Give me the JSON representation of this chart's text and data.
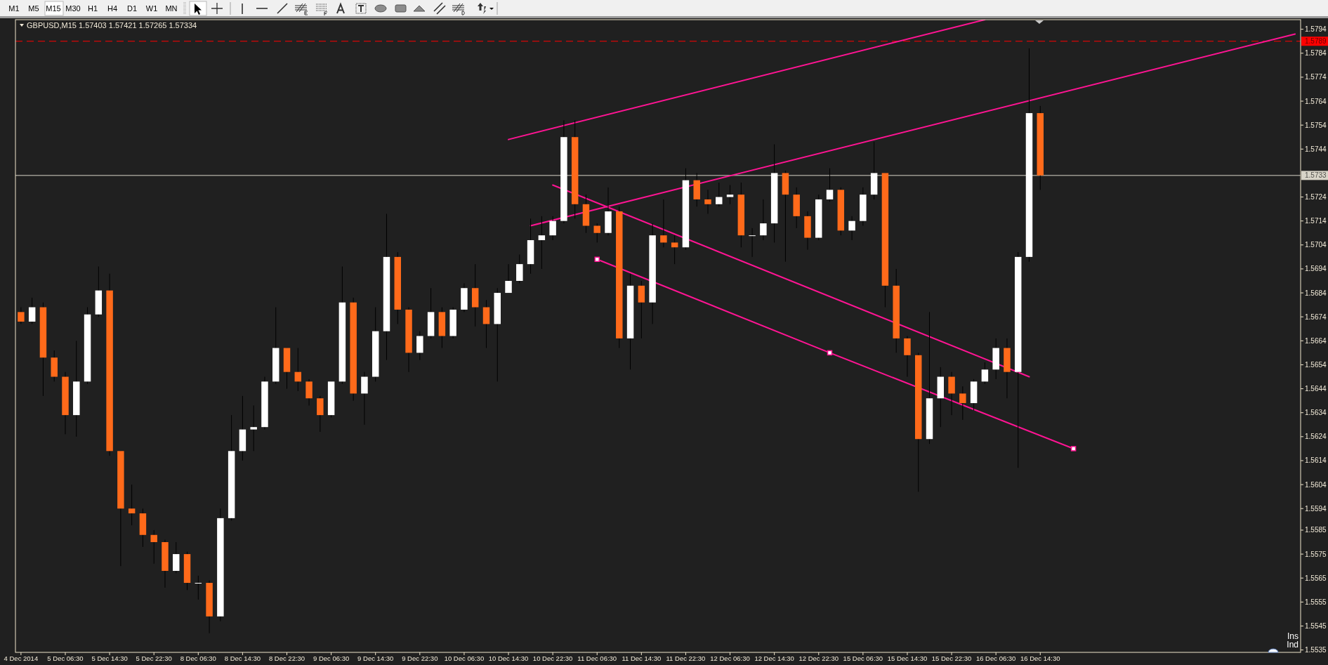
{
  "chart_data": {
    "type": "candlestick",
    "title": "GBPUSD,M15 1.57403 1.57421 1.57265 1.57334",
    "annotations": [
      "M1",
      "M5",
      "M15",
      "M30",
      "H1",
      "H4",
      "D1",
      "W1",
      "MN",
      "Ins",
      "Ind"
    ],
    "categories": [
      "4 Dec 2014",
      null,
      null,
      null,
      "5 Dec 06:30",
      null,
      null,
      null,
      "5 Dec 14:30",
      null,
      null,
      null,
      "5 Dec 22:30",
      null,
      null,
      null,
      "8 Dec 06:30",
      null,
      null,
      null,
      "8 Dec 14:30",
      null,
      null,
      null,
      "8 Dec 22:30",
      null,
      null,
      null,
      "9 Dec 06:30",
      null,
      null,
      null,
      "9 Dec 14:30",
      null,
      null,
      null,
      "9 Dec 22:30",
      null,
      null,
      null,
      "10 Dec 06:30",
      null,
      null,
      null,
      "10 Dec 14:30",
      null,
      null,
      null,
      "10 Dec 22:30",
      null,
      null,
      null,
      "11 Dec 06:30",
      null,
      null,
      null,
      "11 Dec 14:30",
      null,
      null,
      null,
      "11 Dec 22:30",
      null,
      null,
      null,
      "12 Dec 06:30",
      null,
      null,
      null,
      "12 Dec 14:30",
      null,
      null,
      null,
      "12 Dec 22:30",
      null,
      null,
      null,
      "15 Dec 06:30",
      null,
      null,
      null,
      "15 Dec 14:30",
      null,
      null,
      null,
      "15 Dec 22:30",
      null,
      null,
      null,
      "16 Dec 06:30",
      null,
      null,
      null,
      "16 Dec 14:30",
      null,
      null,
      null,
      null,
      null,
      null,
      null,
      null,
      null,
      null,
      null,
      null,
      null,
      null,
      null,
      null,
      null,
      null,
      null,
      null,
      null,
      null,
      null
    ],
    "ohlc": [
      [
        1.5676,
        1.5678,
        1.5671,
        1.5672
      ],
      [
        1.5672,
        1.5682,
        1.5671,
        1.5678
      ],
      [
        1.5678,
        1.568,
        1.5641,
        1.5657
      ],
      [
        1.5657,
        1.566,
        1.5647,
        1.5649
      ],
      [
        1.5649,
        1.5651,
        1.5625,
        1.5633
      ],
      [
        1.5633,
        1.5664,
        1.5624,
        1.5647
      ],
      [
        1.5647,
        1.5678,
        1.5646,
        1.5675
      ],
      [
        1.5675,
        1.5695,
        1.5674,
        1.5685
      ],
      [
        1.5685,
        1.5692,
        1.5616,
        1.5618
      ],
      [
        1.5618,
        1.5618,
        1.557,
        1.5594
      ],
      [
        1.5594,
        1.5604,
        1.5587,
        1.5592
      ],
      [
        1.5592,
        1.5594,
        1.5578,
        1.5583
      ],
      [
        1.5583,
        1.5585,
        1.5571,
        1.558
      ],
      [
        1.558,
        1.5581,
        1.5561,
        1.5568
      ],
      [
        1.5568,
        1.558,
        1.5567,
        1.5575
      ],
      [
        1.5575,
        1.5576,
        1.556,
        1.5563
      ],
      [
        1.5563,
        1.5566,
        1.5556,
        1.5563
      ],
      [
        1.5563,
        1.5564,
        1.5542,
        1.5549
      ],
      [
        1.5549,
        1.5594,
        1.5547,
        1.559
      ],
      [
        1.559,
        1.5633,
        1.5589,
        1.5618
      ],
      [
        1.5618,
        1.5641,
        1.5614,
        1.5627
      ],
      [
        1.5627,
        1.5637,
        1.5618,
        1.5628
      ],
      [
        1.5628,
        1.5649,
        1.5627,
        1.5647
      ],
      [
        1.5647,
        1.5678,
        1.5646,
        1.5661
      ],
      [
        1.5661,
        1.5661,
        1.5644,
        1.5651
      ],
      [
        1.5651,
        1.5661,
        1.5643,
        1.5647
      ],
      [
        1.5647,
        1.5648,
        1.5637,
        1.564
      ],
      [
        1.564,
        1.5641,
        1.5626,
        1.5633
      ],
      [
        1.5633,
        1.5647,
        1.5632,
        1.5647
      ],
      [
        1.5647,
        1.5695,
        1.5646,
        1.568
      ],
      [
        1.568,
        1.5682,
        1.5639,
        1.5642
      ],
      [
        1.5642,
        1.5651,
        1.5629,
        1.5649
      ],
      [
        1.5649,
        1.5678,
        1.5647,
        1.5668
      ],
      [
        1.5668,
        1.5717,
        1.5656,
        1.5699
      ],
      [
        1.5699,
        1.5701,
        1.5671,
        1.5677
      ],
      [
        1.5677,
        1.5678,
        1.5651,
        1.5659
      ],
      [
        1.5659,
        1.5668,
        1.5656,
        1.5666
      ],
      [
        1.5666,
        1.5686,
        1.5665,
        1.5676
      ],
      [
        1.5676,
        1.5678,
        1.5661,
        1.5666
      ],
      [
        1.5666,
        1.5678,
        1.5665,
        1.5677
      ],
      [
        1.5677,
        1.5688,
        1.5676,
        1.5686
      ],
      [
        1.5686,
        1.5696,
        1.567,
        1.5678
      ],
      [
        1.5678,
        1.5681,
        1.5661,
        1.5671
      ],
      [
        1.5671,
        1.5686,
        1.5647,
        1.5684
      ],
      [
        1.5684,
        1.5696,
        1.5684,
        1.5689
      ],
      [
        1.5689,
        1.57,
        1.5688,
        1.5696
      ],
      [
        1.5696,
        1.5715,
        1.5692,
        1.5706
      ],
      [
        1.5706,
        1.5716,
        1.5694,
        1.5708
      ],
      [
        1.5708,
        1.5716,
        1.5706,
        1.5714
      ],
      [
        1.5714,
        1.5756,
        1.5713,
        1.5749
      ],
      [
        1.5749,
        1.5756,
        1.5715,
        1.5721
      ],
      [
        1.5721,
        1.5725,
        1.5709,
        1.5712
      ],
      [
        1.5712,
        1.5713,
        1.5705,
        1.5709
      ],
      [
        1.5709,
        1.5728,
        1.5708,
        1.5718
      ],
      [
        1.5718,
        1.572,
        1.5661,
        1.5665
      ],
      [
        1.5665,
        1.5692,
        1.5652,
        1.5687
      ],
      [
        1.5687,
        1.5689,
        1.5665,
        1.568
      ],
      [
        1.568,
        1.5713,
        1.5671,
        1.5708
      ],
      [
        1.5708,
        1.5723,
        1.5703,
        1.5705
      ],
      [
        1.5705,
        1.5708,
        1.5696,
        1.5703
      ],
      [
        1.5703,
        1.5736,
        1.5702,
        1.5731
      ],
      [
        1.5731,
        1.5734,
        1.572,
        1.5723
      ],
      [
        1.5723,
        1.5727,
        1.5717,
        1.5721
      ],
      [
        1.5721,
        1.573,
        1.572,
        1.5724
      ],
      [
        1.5724,
        1.5729,
        1.5721,
        1.5725
      ],
      [
        1.5725,
        1.573,
        1.5703,
        1.5708
      ],
      [
        1.5708,
        1.5711,
        1.5699,
        1.5708
      ],
      [
        1.5708,
        1.5723,
        1.5706,
        1.5713
      ],
      [
        1.5713,
        1.5746,
        1.5705,
        1.5734
      ],
      [
        1.5734,
        1.5735,
        1.5697,
        1.5725
      ],
      [
        1.5725,
        1.5728,
        1.5711,
        1.5716
      ],
      [
        1.5716,
        1.5718,
        1.5702,
        1.5707
      ],
      [
        1.5707,
        1.5725,
        1.5706,
        1.5723
      ],
      [
        1.5723,
        1.5736,
        1.5722,
        1.5727
      ],
      [
        1.5727,
        1.5728,
        1.5708,
        1.571
      ],
      [
        1.571,
        1.5716,
        1.5706,
        1.5714
      ],
      [
        1.5714,
        1.5728,
        1.5712,
        1.5725
      ],
      [
        1.5725,
        1.5747,
        1.5723,
        1.5734
      ],
      [
        1.5734,
        1.5734,
        1.5678,
        1.5687
      ],
      [
        1.5687,
        1.5694,
        1.5659,
        1.5665
      ],
      [
        1.5665,
        1.5666,
        1.5649,
        1.5658
      ],
      [
        1.5658,
        1.5659,
        1.5601,
        1.5623
      ],
      [
        1.5623,
        1.5676,
        1.5621,
        1.564
      ],
      [
        1.564,
        1.5653,
        1.5628,
        1.5649
      ],
      [
        1.5649,
        1.5651,
        1.5633,
        1.5642
      ],
      [
        1.5642,
        1.5645,
        1.5631,
        1.5638
      ],
      [
        1.5638,
        1.5648,
        1.5635,
        1.5647
      ],
      [
        1.5647,
        1.5655,
        1.5646,
        1.5652
      ],
      [
        1.5652,
        1.5665,
        1.5648,
        1.5661
      ],
      [
        1.5661,
        1.5665,
        1.564,
        1.5651
      ],
      [
        1.5651,
        1.5701,
        1.5611,
        1.5699
      ],
      [
        1.5699,
        1.5786,
        1.5697,
        1.5759
      ],
      [
        1.5759,
        1.5762,
        1.5727,
        1.5733
      ],
      null,
      null,
      null,
      null,
      null,
      null,
      null,
      null,
      null,
      null,
      null,
      null,
      null,
      null,
      null,
      null,
      null,
      null,
      null,
      null,
      null,
      null,
      null
    ],
    "colors": [
      "#ff6a1a",
      "#ffffff",
      "#ff6a1a",
      "#ff6a1a",
      "#ff6a1a",
      "#ffffff",
      "#ffffff",
      "#ffffff",
      "#ff6a1a",
      "#ff6a1a",
      "#ff6a1a",
      "#ff6a1a",
      "#ff6a1a",
      "#ff6a1a",
      "#ffffff",
      "#ff6a1a",
      "#ffffff",
      "#ff6a1a",
      "#ffffff",
      "#ffffff",
      "#ffffff",
      "#ffffff",
      "#ffffff",
      "#ffffff",
      "#ff6a1a",
      "#ff6a1a",
      "#ff6a1a",
      "#ff6a1a",
      "#ffffff",
      "#ffffff",
      "#ff6a1a",
      "#ffffff",
      "#ffffff",
      "#ffffff",
      "#ff6a1a",
      "#ff6a1a",
      "#ffffff",
      "#ffffff",
      "#ff6a1a",
      "#ffffff",
      "#ffffff",
      "#ff6a1a",
      "#ff6a1a",
      "#ffffff",
      "#ffffff",
      "#ffffff",
      "#ffffff",
      "#ffffff",
      "#ffffff",
      "#ffffff",
      "#ff6a1a",
      "#ff6a1a",
      "#ff6a1a",
      "#ffffff",
      "#ff6a1a",
      "#ffffff",
      "#ff6a1a",
      "#ffffff",
      "#ff6a1a",
      "#ff6a1a",
      "#ffffff",
      "#ff6a1a",
      "#ff6a1a",
      "#ffffff",
      "#ffffff",
      "#ff6a1a",
      "#ffffff",
      "#ffffff",
      "#ffffff",
      "#ff6a1a",
      "#ff6a1a",
      "#ff6a1a",
      "#ffffff",
      "#ffffff",
      "#ff6a1a",
      "#ffffff",
      "#ffffff",
      "#ffffff",
      "#ff6a1a",
      "#ff6a1a",
      "#ff6a1a",
      "#ff6a1a",
      "#ffffff",
      "#ffffff",
      "#ff6a1a",
      "#ff6a1a",
      "#ffffff",
      "#ffffff",
      "#ffffff",
      "#ff6a1a",
      "#ffffff",
      "#ffffff",
      "#ff6a1a",
      null,
      null,
      null,
      null,
      null,
      null,
      null,
      null,
      null,
      null,
      null,
      null,
      null,
      null,
      null,
      null,
      null,
      null,
      null,
      null,
      null,
      null,
      null
    ],
    "series": [
      {
        "type": "line",
        "color": "#ff1493",
        "values": [
          null,
          null,
          null,
          null,
          null,
          null,
          null,
          null,
          null,
          null,
          null,
          null,
          null,
          null,
          null,
          null,
          null,
          null,
          null,
          null,
          null,
          null,
          null,
          null,
          null,
          null,
          null,
          null,
          null,
          null,
          null,
          null,
          null,
          null,
          null,
          null,
          null,
          null,
          null,
          null,
          null,
          null,
          null,
          null,
          1.5748,
          null,
          null,
          null,
          null,
          null,
          null,
          null,
          null,
          null,
          null,
          null,
          null,
          null,
          null,
          null,
          null,
          null,
          null,
          null,
          null,
          null,
          null,
          null,
          null,
          null,
          null,
          null,
          null,
          null,
          null,
          null,
          null,
          null,
          null,
          null,
          null,
          null,
          null,
          null,
          null,
          null,
          null,
          1.5798,
          null,
          null,
          null,
          null,
          null,
          null,
          null,
          null,
          null,
          null,
          null,
          null,
          null,
          null,
          null,
          null,
          null,
          null,
          null,
          null,
          null,
          null,
          null,
          null,
          null,
          null,
          null,
          null
        ]
      },
      {
        "type": "line",
        "color": "#ff1493",
        "values": [
          null,
          null,
          null,
          null,
          null,
          null,
          null,
          null,
          null,
          null,
          null,
          null,
          null,
          null,
          null,
          null,
          null,
          null,
          null,
          null,
          null,
          null,
          null,
          null,
          null,
          null,
          null,
          null,
          null,
          null,
          null,
          null,
          null,
          null,
          null,
          null,
          null,
          null,
          null,
          null,
          null,
          null,
          null,
          null,
          null,
          null,
          1.5712,
          null,
          null,
          null,
          null,
          null,
          null,
          null,
          null,
          null,
          null,
          null,
          null,
          null,
          null,
          null,
          null,
          null,
          null,
          null,
          null,
          null,
          null,
          null,
          null,
          null,
          null,
          null,
          null,
          null,
          null,
          null,
          null,
          null,
          null,
          null,
          null,
          null,
          null,
          null,
          null,
          null,
          null,
          null,
          null,
          null,
          null,
          null,
          null,
          null,
          null,
          null,
          null,
          null,
          null,
          null,
          null,
          null,
          null,
          null,
          null,
          null,
          null,
          null,
          null,
          null,
          null,
          null,
          null,
          1.5792
        ]
      },
      {
        "type": "line",
        "color": "#ff1493",
        "values": [
          null,
          null,
          null,
          null,
          null,
          null,
          null,
          null,
          null,
          null,
          null,
          null,
          null,
          null,
          null,
          null,
          null,
          null,
          null,
          null,
          null,
          null,
          null,
          null,
          null,
          null,
          null,
          null,
          null,
          null,
          null,
          null,
          null,
          null,
          null,
          null,
          null,
          null,
          null,
          null,
          null,
          null,
          null,
          null,
          null,
          null,
          null,
          null,
          1.5729,
          null,
          null,
          null,
          null,
          null,
          null,
          null,
          null,
          null,
          null,
          null,
          null,
          null,
          null,
          null,
          null,
          null,
          null,
          null,
          null,
          null,
          null,
          null,
          null,
          null,
          null,
          null,
          null,
          null,
          null,
          null,
          null,
          null,
          null,
          null,
          null,
          null,
          null,
          null,
          null,
          null,
          null,
          1.5649,
          null,
          null,
          null,
          null,
          null,
          null,
          null,
          null,
          null,
          null,
          null,
          null,
          null,
          null,
          null,
          null,
          null,
          null,
          null,
          null,
          null,
          null,
          null,
          null
        ]
      },
      {
        "type": "line",
        "color": "#ff1493",
        "marker": "square",
        "values": [
          null,
          null,
          null,
          null,
          null,
          null,
          null,
          null,
          null,
          null,
          null,
          null,
          null,
          null,
          null,
          null,
          null,
          null,
          null,
          null,
          null,
          null,
          null,
          null,
          null,
          null,
          null,
          null,
          null,
          null,
          null,
          null,
          null,
          null,
          null,
          null,
          null,
          null,
          null,
          null,
          null,
          null,
          null,
          null,
          null,
          null,
          null,
          null,
          null,
          null,
          null,
          null,
          1.5698,
          null,
          null,
          null,
          null,
          null,
          null,
          null,
          null,
          null,
          null,
          null,
          null,
          null,
          null,
          null,
          null,
          null,
          null,
          null,
          null,
          1.5659,
          null,
          null,
          null,
          null,
          null,
          null,
          null,
          null,
          null,
          null,
          null,
          null,
          null,
          null,
          null,
          null,
          null,
          null,
          null,
          null,
          null,
          1.5619,
          null,
          null,
          null,
          null,
          null,
          null,
          null,
          null,
          null,
          null,
          null,
          null,
          null,
          null,
          null,
          null,
          null,
          null,
          null,
          null
        ]
      }
    ],
    "ref_lines": [
      {
        "axis": "y",
        "value": 1.5733,
        "label": "1.5733",
        "color": "#d8d4c8"
      },
      {
        "axis": "y",
        "value": 1.5789,
        "label": "1.5789",
        "color": "#ff0000",
        "line_style": "dashed"
      }
    ],
    "ylim": [
      1.5534,
      1.5798
    ],
    "yticks": [
      1.5794,
      1.5784,
      1.5774,
      1.5764,
      1.5754,
      1.5744,
      1.5724,
      1.5714,
      1.5704,
      1.5694,
      1.5684,
      1.5674,
      1.5664,
      1.5654,
      1.5644,
      1.5634,
      1.5624,
      1.5614,
      1.5604,
      1.5594,
      1.5585,
      1.5575,
      1.5565,
      1.5555,
      1.5545,
      1.5535
    ]
  }
}
